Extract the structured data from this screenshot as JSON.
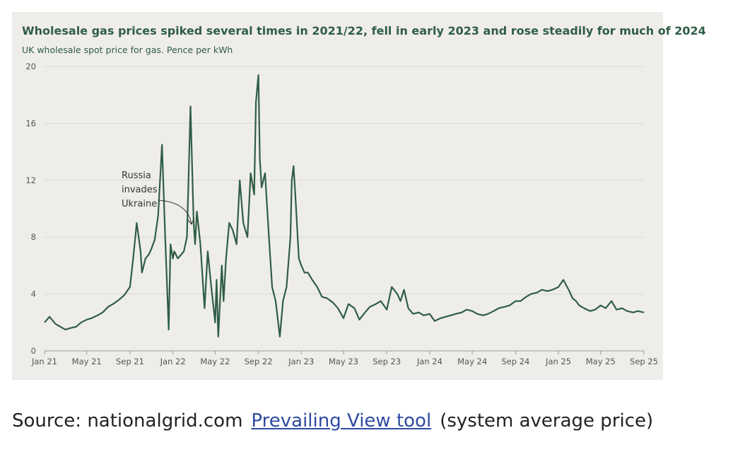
{
  "chart_data": {
    "type": "line",
    "title": "Wholesale gas prices spiked several times in 2021/22, fell in early 2023 and rose steadily for much of 2024",
    "subtitle": "UK wholesale spot price for gas. Pence per kWh",
    "xlabel": "",
    "ylabel": "",
    "ylim": [
      0,
      20
    ],
    "yticks": [
      0,
      4,
      8,
      12,
      16,
      20
    ],
    "xlim": [
      "2021-01",
      "2025-09"
    ],
    "xticks": [
      "Jan 21",
      "May 21",
      "Sep 21",
      "Jan 22",
      "May 22",
      "Sep 22",
      "Jan 23",
      "May 23",
      "Sep 23",
      "Jan 24",
      "May 24",
      "Sep 24",
      "Jan 25",
      "May 25",
      "Sep 25"
    ],
    "grid": true,
    "color": "#2f5e45",
    "annotation": {
      "lines": [
        "Russia",
        "invades",
        "Ukraine"
      ],
      "x": "2022-03"
    },
    "series": [
      {
        "x": [
          "2021-01",
          "2021-01-15",
          "2021-02",
          "2021-02-15",
          "2021-03",
          "2021-03-15",
          "2021-04",
          "2021-04-15",
          "2021-05",
          "2021-05-15",
          "2021-06",
          "2021-06-15",
          "2021-07",
          "2021-07-15",
          "2021-08",
          "2021-08-15",
          "2021-09",
          "2021-09-10",
          "2021-09-20",
          "2021-10",
          "2021-10-05",
          "2021-10-15",
          "2021-10-25",
          "2021-11",
          "2021-11-10",
          "2021-11-20",
          "2021-12",
          "2021-12-10",
          "2021-12-20",
          "2021-12-25",
          "2022-01",
          "2022-01-05",
          "2022-01-15",
          "2022-02",
          "2022-02-10",
          "2022-02-20",
          "2022-03",
          "2022-03-05",
          "2022-03-10",
          "2022-03-20",
          "2022-04",
          "2022-04-10",
          "2022-04-20",
          "2022-05",
          "2022-05-05",
          "2022-05-10",
          "2022-05-20",
          "2022-05-25",
          "2022-06",
          "2022-06-10",
          "2022-06-20",
          "2022-07",
          "2022-07-10",
          "2022-07-20",
          "2022-08",
          "2022-08-10",
          "2022-08-20",
          "2022-08-25",
          "2022-09",
          "2022-09-05",
          "2022-09-10",
          "2022-09-20",
          "2022-10",
          "2022-10-10",
          "2022-10-20",
          "2022-11",
          "2022-11-10",
          "2022-11-20",
          "2022-12",
          "2022-12-05",
          "2022-12-10",
          "2022-12-15",
          "2022-12-25",
          "2023-01",
          "2023-01-10",
          "2023-01-20",
          "2023-02",
          "2023-02-15",
          "2023-03",
          "2023-03-15",
          "2023-04",
          "2023-04-15",
          "2023-05",
          "2023-05-15",
          "2023-06",
          "2023-06-15",
          "2023-07",
          "2023-07-15",
          "2023-08",
          "2023-08-15",
          "2023-09",
          "2023-09-15",
          "2023-10",
          "2023-10-10",
          "2023-10-20",
          "2023-11",
          "2023-11-15",
          "2023-12",
          "2023-12-15",
          "2024-01",
          "2024-01-15",
          "2024-02",
          "2024-02-15",
          "2024-03",
          "2024-03-15",
          "2024-04",
          "2024-04-15",
          "2024-05",
          "2024-05-15",
          "2024-06",
          "2024-06-15",
          "2024-07",
          "2024-07-15",
          "2024-08",
          "2024-08-15",
          "2024-09",
          "2024-09-15",
          "2024-10",
          "2024-10-15",
          "2024-11",
          "2024-11-15",
          "2024-12",
          "2024-12-15",
          "2025-01",
          "2025-01-15",
          "2025-02",
          "2025-02-10",
          "2025-02-20",
          "2025-03",
          "2025-03-15",
          "2025-04",
          "2025-04-15",
          "2025-05",
          "2025-05-15",
          "2025-06",
          "2025-06-15",
          "2025-07",
          "2025-07-15",
          "2025-08",
          "2025-08-15",
          "2025-09"
        ],
        "values": [
          2.0,
          2.4,
          1.9,
          1.7,
          1.5,
          1.6,
          1.7,
          2.0,
          2.2,
          2.3,
          2.5,
          2.7,
          3.1,
          3.3,
          3.6,
          3.9,
          4.5,
          6.5,
          9.0,
          7.0,
          5.5,
          6.5,
          6.8,
          7.2,
          7.8,
          9.5,
          14.5,
          8.0,
          1.5,
          7.5,
          6.5,
          7.0,
          6.5,
          7.0,
          8.0,
          17.2,
          9.0,
          7.5,
          9.8,
          7.5,
          3.0,
          7.0,
          4.5,
          2.0,
          5.0,
          1.0,
          6.0,
          3.5,
          6.5,
          9.0,
          8.5,
          7.5,
          12.0,
          9.0,
          8.0,
          12.5,
          11.0,
          17.5,
          19.4,
          13.5,
          11.5,
          12.5,
          8.0,
          4.5,
          3.5,
          1.0,
          3.5,
          4.5,
          8.0,
          12.0,
          13.0,
          11.0,
          6.5,
          6.0,
          5.5,
          5.5,
          5.0,
          4.5,
          3.8,
          3.7,
          3.4,
          3.0,
          2.3,
          3.3,
          3.0,
          2.2,
          2.7,
          3.1,
          3.3,
          3.5,
          2.9,
          4.5,
          4.0,
          3.5,
          4.3,
          3.0,
          2.6,
          2.7,
          2.5,
          2.6,
          2.1,
          2.3,
          2.4,
          2.5,
          2.6,
          2.7,
          2.9,
          2.8,
          2.6,
          2.5,
          2.6,
          2.8,
          3.0,
          3.1,
          3.2,
          3.5,
          3.5,
          3.8,
          4.0,
          4.1,
          4.3,
          4.2,
          4.3,
          4.5,
          5.0,
          4.2,
          3.7,
          3.5,
          3.2,
          3.0,
          2.8,
          2.9,
          3.2,
          3.0,
          3.5,
          2.9,
          3.0,
          2.8,
          2.7,
          2.8,
          2.7
        ]
      }
    ]
  },
  "source": {
    "prefix": "Source: nationalgrid.com",
    "link_text": "Prevailing View tool",
    "suffix": "(system average price)"
  }
}
